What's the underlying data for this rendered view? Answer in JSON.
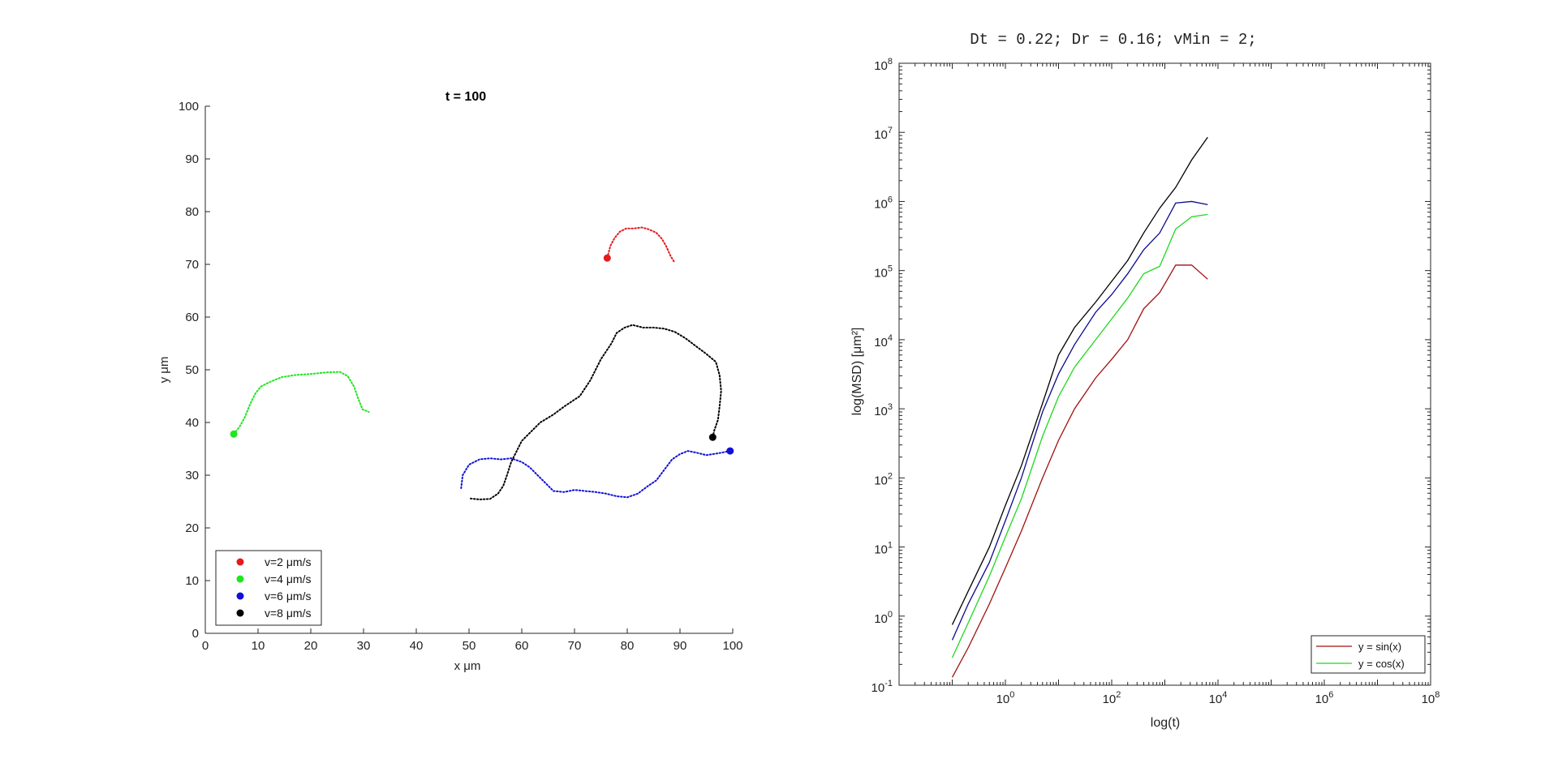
{
  "chart_data": [
    {
      "type": "scatter",
      "title": "t = 100",
      "xlabel": "x μm",
      "ylabel": "y μm",
      "xlim": [
        0,
        100
      ],
      "ylim": [
        0,
        100
      ],
      "xticks": [
        "0",
        "10",
        "20",
        "30",
        "40",
        "50",
        "60",
        "70",
        "80",
        "90",
        "100"
      ],
      "yticks": [
        "0",
        "10",
        "20",
        "30",
        "40",
        "50",
        "60",
        "70",
        "80",
        "90",
        "100"
      ],
      "legend_position": "bottom-left",
      "series": [
        {
          "name": "v=2 μm/s",
          "color": "#e41a1c",
          "current": [
            76.2,
            71.2
          ],
          "trail": [
            [
              76.2,
              71.2
            ],
            [
              76.8,
              73.5
            ],
            [
              77.6,
              75.0
            ],
            [
              78.6,
              76.2
            ],
            [
              79.8,
              76.8
            ],
            [
              81.2,
              76.8
            ],
            [
              82.8,
              77.0
            ],
            [
              84.2,
              76.6
            ],
            [
              85.5,
              76.0
            ],
            [
              86.6,
              74.8
            ],
            [
              87.4,
              73.4
            ],
            [
              88.2,
              71.6
            ],
            [
              89.0,
              70.3
            ]
          ]
        },
        {
          "name": "v=4 μm/s",
          "color": "#1ee61e",
          "current": [
            5.4,
            37.8
          ],
          "trail": [
            [
              5.4,
              37.8
            ],
            [
              6.5,
              39.2
            ],
            [
              7.5,
              41.0
            ],
            [
              8.5,
              43.5
            ],
            [
              9.5,
              45.5
            ],
            [
              10.5,
              46.8
            ],
            [
              12.5,
              47.8
            ],
            [
              14.5,
              48.6
            ],
            [
              17.0,
              49.0
            ],
            [
              20.0,
              49.2
            ],
            [
              23.0,
              49.5
            ],
            [
              25.5,
              49.6
            ],
            [
              27.0,
              48.8
            ],
            [
              28.2,
              46.8
            ],
            [
              29.0,
              44.5
            ],
            [
              29.8,
              42.5
            ],
            [
              31.0,
              42.0
            ]
          ]
        },
        {
          "name": "v=6 μm/s",
          "color": "#1010d8",
          "current": [
            99.5,
            34.6
          ],
          "trail": [
            [
              99.5,
              34.6
            ],
            [
              97.5,
              34.2
            ],
            [
              95.0,
              33.8
            ],
            [
              93.0,
              34.3
            ],
            [
              91.5,
              34.6
            ],
            [
              90.0,
              34.0
            ],
            [
              88.5,
              33.0
            ],
            [
              87.0,
              31.0
            ],
            [
              85.5,
              29.0
            ],
            [
              84.0,
              28.0
            ],
            [
              82.0,
              26.5
            ],
            [
              80.0,
              25.8
            ],
            [
              78.0,
              26.0
            ],
            [
              76.0,
              26.5
            ],
            [
              74.0,
              26.8
            ],
            [
              72.0,
              27.0
            ],
            [
              70.0,
              27.2
            ],
            [
              68.0,
              26.8
            ],
            [
              66.0,
              27.0
            ],
            [
              64.5,
              28.5
            ],
            [
              63.0,
              30.0
            ],
            [
              61.5,
              31.5
            ],
            [
              60.0,
              32.5
            ],
            [
              58.0,
              33.2
            ],
            [
              56.0,
              33.0
            ],
            [
              54.0,
              33.2
            ],
            [
              52.0,
              33.0
            ],
            [
              50.0,
              32.0
            ],
            [
              48.8,
              30.0
            ],
            [
              48.5,
              27.5
            ]
          ]
        },
        {
          "name": "v=8 μm/s",
          "color": "#000000",
          "current": [
            96.2,
            37.2
          ],
          "trail": [
            [
              96.2,
              37.2
            ],
            [
              96.5,
              38.5
            ],
            [
              97.2,
              40.5
            ],
            [
              97.5,
              43.0
            ],
            [
              97.8,
              46.0
            ],
            [
              97.5,
              49.0
            ],
            [
              96.8,
              51.5
            ],
            [
              95.0,
              53.0
            ],
            [
              93.0,
              54.5
            ],
            [
              91.0,
              56.0
            ],
            [
              89.0,
              57.2
            ],
            [
              87.0,
              57.8
            ],
            [
              85.0,
              58.0
            ],
            [
              83.0,
              58.0
            ],
            [
              81.0,
              58.5
            ],
            [
              79.5,
              58.0
            ],
            [
              78.0,
              57.0
            ],
            [
              77.0,
              55.0
            ],
            [
              76.0,
              53.5
            ],
            [
              75.0,
              52.0
            ],
            [
              74.0,
              50.0
            ],
            [
              73.0,
              48.0
            ],
            [
              72.0,
              46.5
            ],
            [
              71.0,
              45.0
            ],
            [
              69.5,
              44.0
            ],
            [
              68.0,
              43.0
            ],
            [
              66.0,
              41.5
            ],
            [
              63.5,
              40.0
            ],
            [
              61.5,
              38.0
            ],
            [
              60.0,
              36.5
            ],
            [
              59.0,
              34.5
            ],
            [
              58.0,
              32.5
            ],
            [
              57.2,
              30.0
            ],
            [
              56.5,
              28.0
            ],
            [
              55.5,
              26.5
            ],
            [
              54.0,
              25.5
            ],
            [
              52.0,
              25.4
            ],
            [
              50.0,
              25.6
            ]
          ]
        }
      ]
    },
    {
      "type": "line",
      "title": "Dt = 0.22; Dr = 0.16; vMin = 2;",
      "xlabel": "log(t)",
      "ylabel": "log(MSD) [μm²]",
      "xscale": "log",
      "yscale": "log",
      "xlim_exponents": [
        -2,
        8
      ],
      "ylim_exponents": [
        -1,
        8
      ],
      "xtick_exponents": [
        "0",
        "2",
        "4",
        "6",
        "8"
      ],
      "ytick_exponents": [
        "-1",
        "0",
        "1",
        "2",
        "3",
        "4",
        "5",
        "6",
        "7",
        "8"
      ],
      "tick_base": "10",
      "legend_position": "bottom-right",
      "legend": [
        {
          "label": "y = sin(x)",
          "color": "#a01010"
        },
        {
          "label": "y = cos(x)",
          "color": "#1ed81e"
        }
      ],
      "x": [
        0.1,
        0.2,
        0.5,
        1,
        2,
        5,
        10,
        20,
        50,
        100,
        200,
        400,
        800,
        1600,
        3200,
        6400
      ],
      "series": [
        {
          "color": "#a01010",
          "values": [
            0.13,
            0.35,
            1.5,
            5,
            17,
            100,
            350,
            1000,
            2800,
            5200,
            10000,
            28000,
            48000,
            120000,
            120000,
            75000
          ]
        },
        {
          "color": "#1ed81e",
          "values": [
            0.25,
            0.8,
            3.8,
            14,
            50,
            400,
            1500,
            4000,
            10000,
            20000,
            40000,
            90000,
            115000,
            400000,
            600000,
            650000
          ]
        },
        {
          "color": "#0a0a8c",
          "values": [
            0.45,
            1.5,
            6,
            24,
            100,
            900,
            3200,
            8500,
            25000,
            45000,
            90000,
            200000,
            350000,
            950000,
            1000000,
            900000
          ]
        },
        {
          "color": "#000000",
          "values": [
            0.75,
            2.3,
            10,
            40,
            150,
            1200,
            6000,
            15000,
            35000,
            70000,
            140000,
            350000,
            800000,
            1600000,
            4000000,
            8500000
          ]
        }
      ]
    }
  ]
}
